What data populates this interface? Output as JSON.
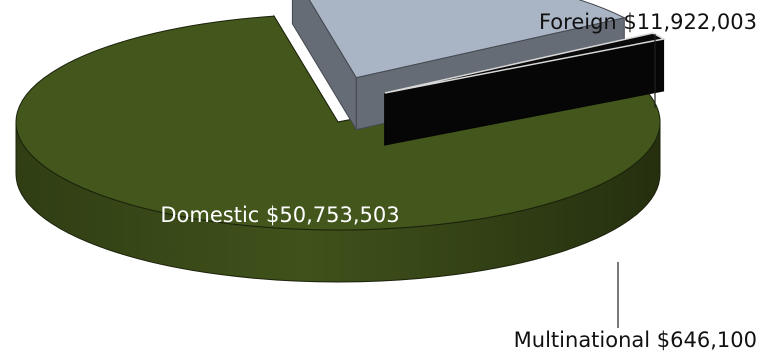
{
  "chart_data": {
    "type": "pie",
    "style": "3d-exploded",
    "slices": [
      {
        "name": "Domestic",
        "value": 50753503,
        "label": "Domestic $50,753,503",
        "color": "#43561c"
      },
      {
        "name": "Foreign",
        "value": 11922003,
        "label": "Foreign $11,922,003",
        "color": "#a9b4c5"
      },
      {
        "name": "Multinational",
        "value": 646100,
        "label": "Multinational $646,100",
        "color": "#0a0a0a"
      }
    ],
    "label_colors": {
      "inside": "#ffffff",
      "outside": "#111111"
    }
  }
}
